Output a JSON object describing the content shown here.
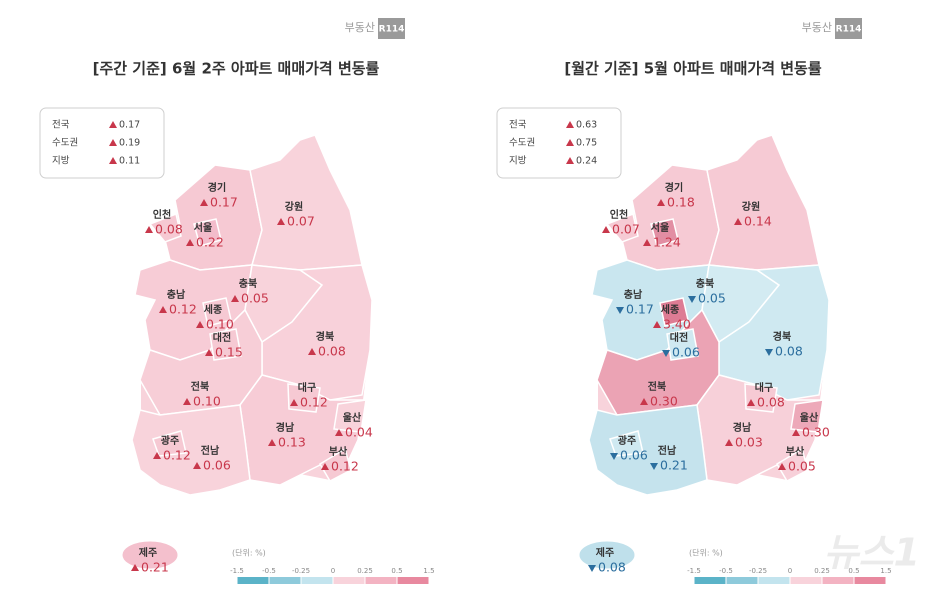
{
  "logo": {
    "text": "부동산",
    "badge": "R114"
  },
  "watermark": "뉴스1",
  "maps": [
    {
      "title": "[주간 기준] 6월 2주 아파트 매매가격 변동률",
      "summary": [
        {
          "label": "전국",
          "value": "0.17",
          "direction": "up"
        },
        {
          "label": "수도권",
          "value": "0.19",
          "direction": "up"
        },
        {
          "label": "지방",
          "value": "0.11",
          "direction": "up"
        }
      ],
      "regions": [
        {
          "name": "경기",
          "value": "0.17",
          "direction": "up",
          "color": "#f6c9d3"
        },
        {
          "name": "강원",
          "value": "0.07",
          "direction": "up",
          "color": "#f8d3db"
        },
        {
          "name": "충남",
          "value": "0.12",
          "direction": "up",
          "color": "#f7ccd6"
        },
        {
          "name": "충북",
          "value": "0.05",
          "direction": "up",
          "color": "#f8d3db"
        },
        {
          "name": "경북",
          "value": "0.08",
          "direction": "up",
          "color": "#f8d1da"
        },
        {
          "name": "전북",
          "value": "0.10",
          "direction": "up",
          "color": "#f7ced7"
        },
        {
          "name": "경남",
          "value": "0.13",
          "direction": "up",
          "color": "#f7ccd6"
        },
        {
          "name": "전남",
          "value": "0.06",
          "direction": "up",
          "color": "#f8d3db"
        },
        {
          "name": "인천",
          "value": "0.08",
          "direction": "up",
          "color": "#f6c9d3"
        },
        {
          "name": "서울",
          "value": "0.22",
          "direction": "up",
          "color": "#f3bccb"
        },
        {
          "name": "세종",
          "value": "0.10",
          "direction": "up",
          "color": "#f6c9d3"
        },
        {
          "name": "대전",
          "value": "0.15",
          "direction": "up",
          "color": "#f6c9d3"
        },
        {
          "name": "대구",
          "value": "0.12",
          "direction": "up",
          "color": "#f6c9d3"
        },
        {
          "name": "울산",
          "value": "0.04",
          "direction": "up",
          "color": "#f8d3db"
        },
        {
          "name": "부산",
          "value": "0.12",
          "direction": "up",
          "color": "#f6c9d3"
        },
        {
          "name": "광주",
          "value": "0.12",
          "direction": "up",
          "color": "#f6c9d3"
        },
        {
          "name": "제주",
          "value": "0.21",
          "direction": "up",
          "color": "#f4c0cd"
        }
      ],
      "legend": {
        "unit": "(단위: %)",
        "ticks": [
          -1.5,
          -0.5,
          -0.25,
          0,
          0.25,
          0.5,
          1.5
        ],
        "colors": [
          "#5bb3c8",
          "#8ecadb",
          "#c3e4ee",
          "#f8d3db",
          "#f3b3c2",
          "#e8899f"
        ]
      }
    },
    {
      "title": "[월간 기준] 5월 아파트 매매가격 변동률",
      "summary": [
        {
          "label": "전국",
          "value": "0.63",
          "direction": "up"
        },
        {
          "label": "수도권",
          "value": "0.75",
          "direction": "up"
        },
        {
          "label": "지방",
          "value": "0.24",
          "direction": "up"
        }
      ],
      "regions": [
        {
          "name": "경기",
          "value": "0.18",
          "direction": "up",
          "color": "#f6cad4"
        },
        {
          "name": "강원",
          "value": "0.14",
          "direction": "up",
          "color": "#f6cad4"
        },
        {
          "name": "충남",
          "value": "0.17",
          "direction": "down",
          "color": "#c9e6ef"
        },
        {
          "name": "충북",
          "value": "0.05",
          "direction": "down",
          "color": "#d3ebf2"
        },
        {
          "name": "경북",
          "value": "0.08",
          "direction": "down",
          "color": "#cfe9f1"
        },
        {
          "name": "전북",
          "value": "0.30",
          "direction": "up",
          "color": "#eba3b4"
        },
        {
          "name": "경남",
          "value": "0.03",
          "direction": "up",
          "color": "#f7d0d9"
        },
        {
          "name": "전남",
          "value": "0.21",
          "direction": "down",
          "color": "#c5e3ed"
        },
        {
          "name": "인천",
          "value": "0.07",
          "direction": "up",
          "color": "#f6cad4"
        },
        {
          "name": "서울",
          "value": "1.24",
          "direction": "up",
          "color": "#e28ea3"
        },
        {
          "name": "세종",
          "value": "3.40",
          "direction": "up",
          "color": "#dd7c94"
        },
        {
          "name": "대전",
          "value": "0.06",
          "direction": "down",
          "color": "#d0e9f1"
        },
        {
          "name": "대구",
          "value": "0.08",
          "direction": "up",
          "color": "#f6cad4"
        },
        {
          "name": "울산",
          "value": "0.30",
          "direction": "up",
          "color": "#eda9b9"
        },
        {
          "name": "부산",
          "value": "0.05",
          "direction": "up",
          "color": "#f7d0d9"
        },
        {
          "name": "광주",
          "value": "0.06",
          "direction": "down",
          "color": "#cfe9f1"
        },
        {
          "name": "제주",
          "value": "0.08",
          "direction": "down",
          "color": "#bfe0eb"
        }
      ],
      "legend": {
        "unit": "(단위: %)",
        "ticks": [
          -1.5,
          -0.5,
          -0.25,
          0,
          0.25,
          0.5,
          1.5
        ],
        "colors": [
          "#5bb3c8",
          "#8ecadb",
          "#c3e4ee",
          "#f8d3db",
          "#f3b3c2",
          "#e8899f"
        ]
      }
    }
  ]
}
